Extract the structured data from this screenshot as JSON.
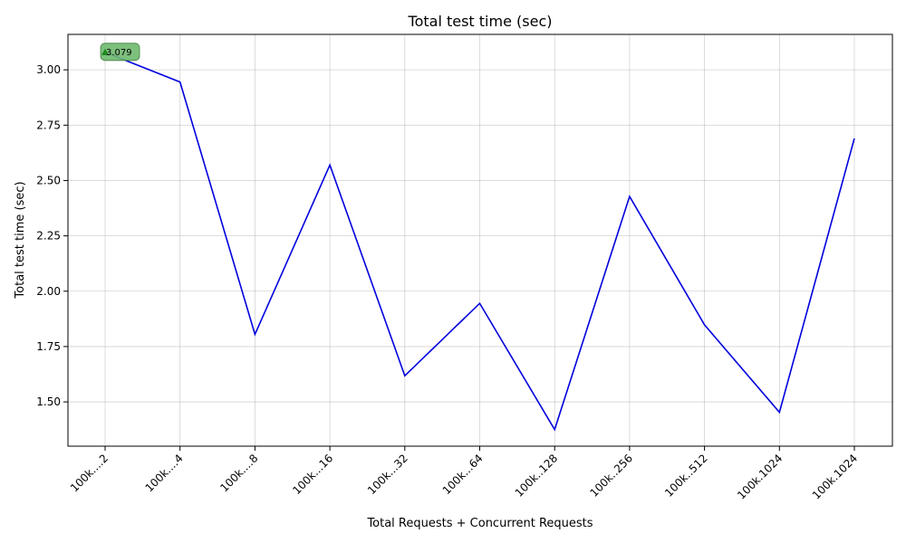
{
  "chart_data": {
    "type": "line",
    "title": "Total test time (sec)",
    "xlabel": "Total Requests + Concurrent Requests",
    "ylabel": "Total test time (sec)",
    "categories": [
      "100k....2",
      "100k....4",
      "100k....8",
      "100k...16",
      "100k...32",
      "100k...64",
      "100k..128",
      "100k..256",
      "100k..512",
      "100k.1024",
      "100k.1024"
    ],
    "series": [
      {
        "values": [
          3.079,
          2.945,
          1.805,
          2.57,
          1.618,
          1.945,
          1.375,
          2.428,
          1.848,
          1.453,
          2.69
        ],
        "color": "#0000dd"
      }
    ],
    "ylim": [
      1.3,
      3.16
    ],
    "yticks": [
      1.5,
      1.75,
      2.0,
      2.25,
      2.5,
      2.75,
      3.0
    ],
    "grid": true,
    "annotation": {
      "index": 0,
      "text": "3.079",
      "marker_color": "#1a8a1a",
      "box_color": "#6fb86f"
    }
  }
}
